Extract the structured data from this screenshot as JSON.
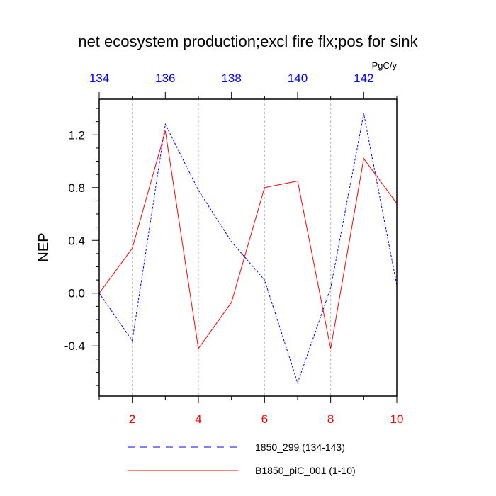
{
  "chart_data": {
    "type": "line",
    "title": "net ecosystem production;excl fire flx;pos for sink",
    "units": "PgC/y",
    "ylabel": "NEP",
    "xlim_bottom": [
      1,
      10
    ],
    "xlim_top": [
      134,
      143
    ],
    "ylim": [
      -0.78,
      1.47
    ],
    "bottom_ticks": [
      "2",
      "4",
      "6",
      "8",
      "10"
    ],
    "top_ticks": [
      "134",
      "136",
      "138",
      "140",
      "142"
    ],
    "y_ticks": [
      "1.2",
      "0.8",
      "0.4",
      "0.0",
      "-0.4"
    ],
    "grid": "dotted vertical lines at major bottom-axis ticks",
    "legend_position": "bottom",
    "series": [
      {
        "name": "1850_299 (134-143)",
        "axis": "top",
        "color": "#0000ff",
        "style": "dashed",
        "x": [
          134,
          135,
          136,
          137,
          138,
          139,
          140,
          141,
          142,
          143
        ],
        "values": [
          0.0,
          -0.36,
          1.28,
          0.78,
          0.39,
          0.1,
          -0.68,
          0.04,
          1.36,
          0.06
        ]
      },
      {
        "name": "B1850_piC_001 (1-10)",
        "axis": "bottom",
        "color": "#ff0000",
        "style": "solid",
        "x": [
          1,
          2,
          3,
          4,
          5,
          6,
          7,
          8,
          9,
          10
        ],
        "values": [
          0.0,
          0.34,
          1.23,
          -0.42,
          -0.07,
          0.8,
          0.85,
          -0.42,
          1.02,
          0.68
        ]
      }
    ]
  }
}
